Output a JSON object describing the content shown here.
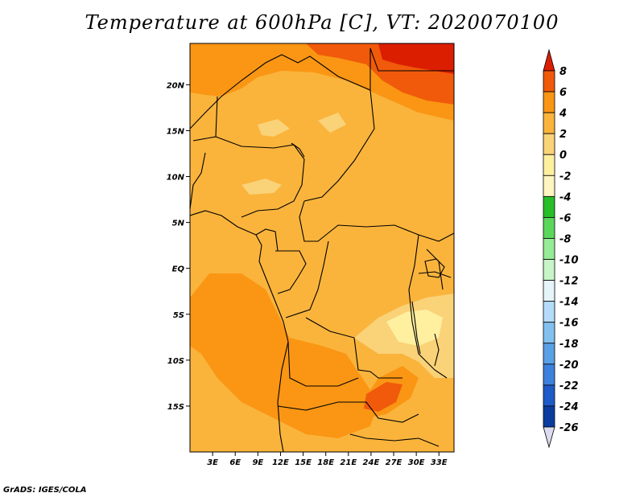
{
  "title": "Temperature at 600hPa [C], VT: 2020070100",
  "credit": "GrADS: IGES/COLA",
  "map": {
    "lon_range": [
      0,
      35
    ],
    "lat_range": [
      -20,
      24.5
    ],
    "lat_ticks": [
      {
        "value": 20,
        "label": "20N"
      },
      {
        "value": 15,
        "label": "15N"
      },
      {
        "value": 10,
        "label": "10N"
      },
      {
        "value": 5,
        "label": "5N"
      },
      {
        "value": 0,
        "label": "EQ"
      },
      {
        "value": -5,
        "label": "5S"
      },
      {
        "value": -10,
        "label": "10S"
      },
      {
        "value": -15,
        "label": "15S"
      }
    ],
    "lon_ticks": [
      {
        "value": 3,
        "label": "3E"
      },
      {
        "value": 6,
        "label": "6E"
      },
      {
        "value": 9,
        "label": "9E"
      },
      {
        "value": 12,
        "label": "12E"
      },
      {
        "value": 15,
        "label": "15E"
      },
      {
        "value": 18,
        "label": "18E"
      },
      {
        "value": 21,
        "label": "21E"
      },
      {
        "value": 24,
        "label": "24E"
      },
      {
        "value": 27,
        "label": "27E"
      },
      {
        "value": 30,
        "label": "30E"
      },
      {
        "value": 33,
        "label": "33E"
      }
    ]
  },
  "colorbar": {
    "levels": [
      "8",
      "6",
      "4",
      "2",
      "0",
      "-2",
      "-4",
      "-6",
      "-8",
      "-10",
      "-12",
      "-14",
      "-16",
      "-18",
      "-20",
      "-22",
      "-24",
      "-26"
    ],
    "colors": [
      "#dc1e00",
      "#f05a0a",
      "#fa9614",
      "#fab43c",
      "#fad278",
      "#fff0a0",
      "#fff5c0",
      "#28be28",
      "#5ad75a",
      "#96eb96",
      "#c8f5c8",
      "#e6f5fa",
      "#b4dcfa",
      "#82c0f0",
      "#5aa0e6",
      "#3c82dc",
      "#1e5ac8",
      "#0a3ca0",
      "#00146e"
    ],
    "top_arrow_color": "#dc1e00",
    "bottom_arrow_color": "#dcdcf0"
  },
  "field_colors": {
    "base": "#fab43c",
    "warm": "#fa9614",
    "hot": "#f05a0a",
    "hottest": "#dc1e00",
    "cool": "#fad278",
    "coolest": "#fff0a0"
  }
}
